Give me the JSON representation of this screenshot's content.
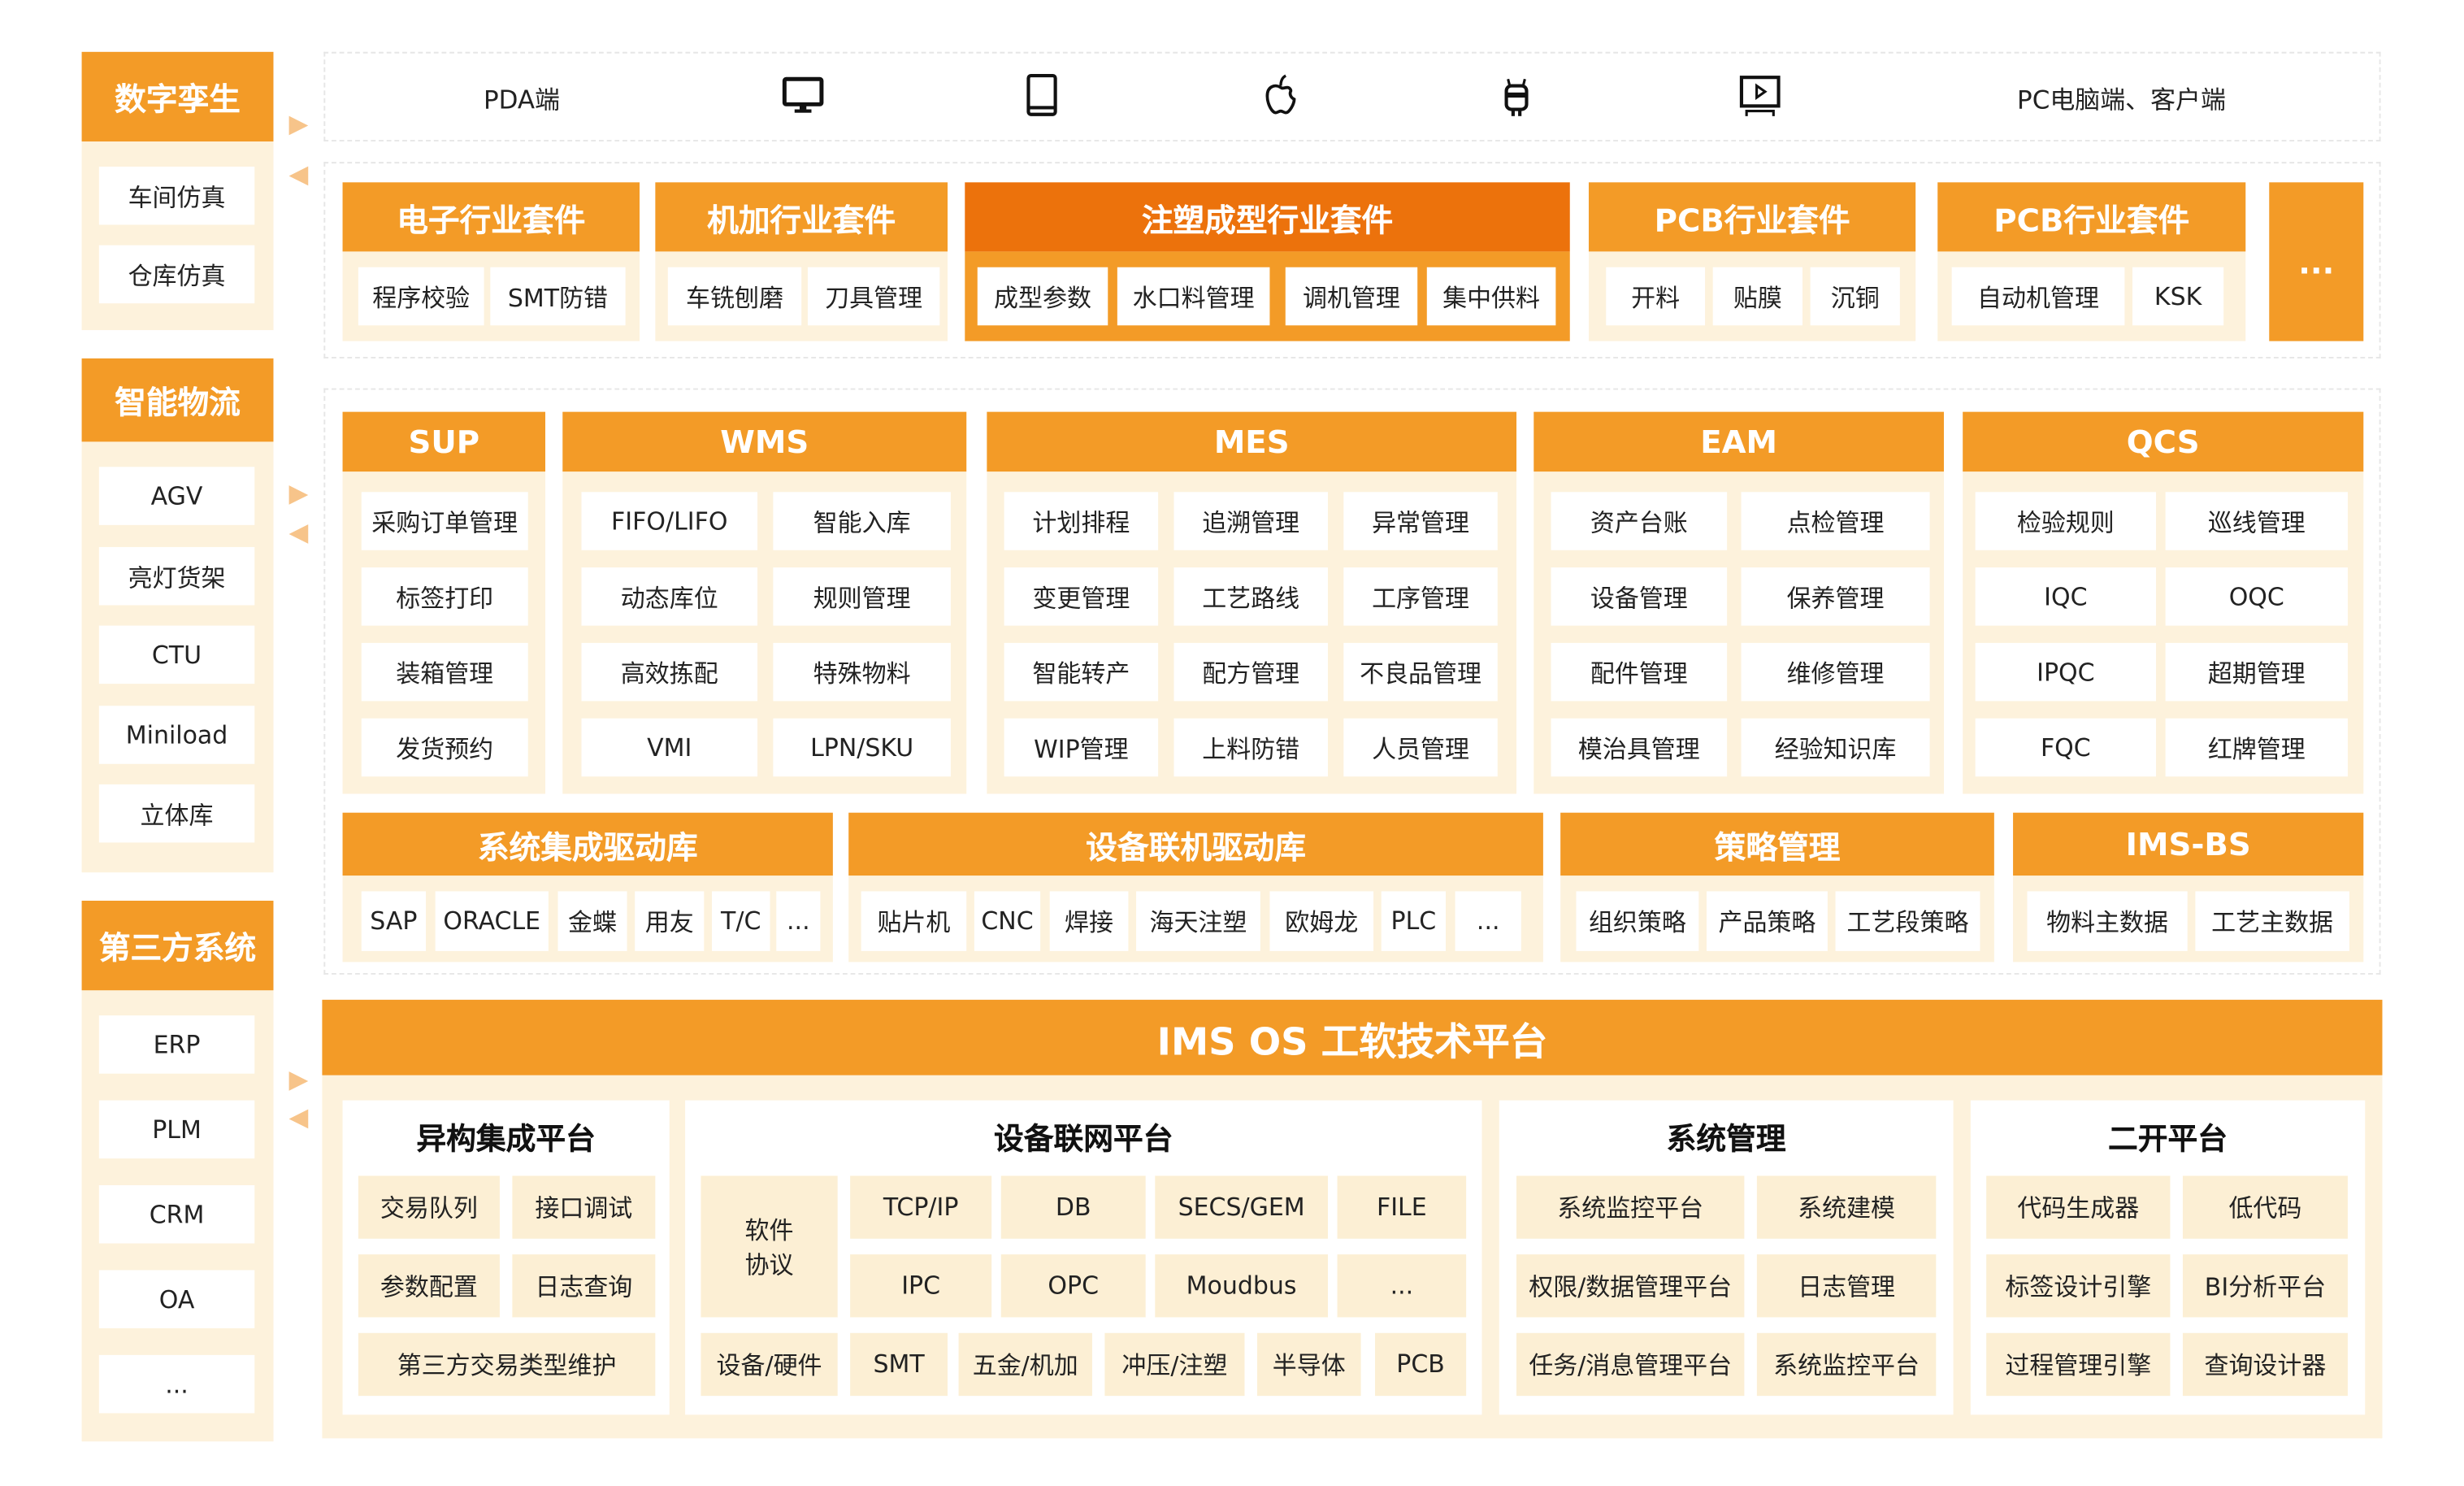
{
  "left": [
    {
      "title": "数字孪生",
      "items": [
        "车间仿真",
        "仓库仿真"
      ]
    },
    {
      "title": "智能物流",
      "items": [
        "AGV",
        "亮灯货架",
        "CTU",
        "Miniload",
        "立体库"
      ]
    },
    {
      "title": "第三方系统",
      "items": [
        "ERP",
        "PLM",
        "CRM",
        "OA",
        "..."
      ]
    }
  ],
  "devices": {
    "pda_label": "PDA端",
    "pc_label": "PC电脑端、客户端",
    "icons": [
      "monitor-icon",
      "tablet-icon",
      "apple-icon",
      "android-icon",
      "tv-icon"
    ]
  },
  "kits": [
    {
      "title": "电子行业套件",
      "items": [
        "程序校验",
        "SMT防错"
      ]
    },
    {
      "title": "机加行业套件",
      "items": [
        "车铣刨磨",
        "刀具管理"
      ]
    },
    {
      "title": "注塑成型行业套件",
      "items": [
        "成型参数",
        "水口料管理",
        "调机管理",
        "集中供料"
      ],
      "highlight": true
    },
    {
      "title": "PCB行业套件",
      "items": [
        "开料",
        "贴膜",
        "沉铜"
      ]
    },
    {
      "title": "PCB行业套件",
      "items": [
        "自动机管理",
        "KSK"
      ]
    }
  ],
  "kits_more": "...",
  "modules": [
    {
      "title": "SUP",
      "items": [
        "采购订单管理",
        "标签打印",
        "装箱管理",
        "发货预约"
      ]
    },
    {
      "title": "WMS",
      "items": [
        "FIFO/LIFO",
        "智能入库",
        "动态库位",
        "规则管理",
        "高效拣配",
        "特殊物料",
        "VMI",
        "LPN/SKU"
      ]
    },
    {
      "title": "MES",
      "items": [
        "计划排程",
        "追溯管理",
        "异常管理",
        "变更管理",
        "工艺路线",
        "工序管理",
        "智能转产",
        "配方管理",
        "不良品管理",
        "WIP管理",
        "上料防错",
        "人员管理"
      ]
    },
    {
      "title": "EAM",
      "items": [
        "资产台账",
        "点检管理",
        "设备管理",
        "保养管理",
        "配件管理",
        "维修管理",
        "模治具管理",
        "经验知识库"
      ]
    },
    {
      "title": "QCS",
      "items": [
        "检验规则",
        "巡线管理",
        "IQC",
        "OQC",
        "IPQC",
        "超期管理",
        "FQC",
        "红牌管理"
      ]
    }
  ],
  "drivers": [
    {
      "title": "系统集成驱动库",
      "items": [
        "SAP",
        "ORACLE",
        "金蝶",
        "用友",
        "T/C",
        "..."
      ]
    },
    {
      "title": "设备联机驱动库",
      "items": [
        "贴片机",
        "CNC",
        "焊接",
        "海天注塑",
        "欧姆龙",
        "PLC",
        "..."
      ]
    },
    {
      "title": "策略管理",
      "items": [
        "组织策略",
        "产品策略",
        "工艺段策略"
      ]
    },
    {
      "title": "IMS-BS",
      "items": [
        "物料主数据",
        "工艺主数据"
      ]
    }
  ],
  "platform": {
    "title": "IMS OS 工软技术平台",
    "panels": [
      {
        "title": "异构集成平台",
        "items": [
          "交易队列",
          "接口调试",
          "参数配置",
          "日志查询",
          "第三方交易类型维护"
        ]
      },
      {
        "title": "设备联网平台",
        "items": [
          "软件\n协议",
          "TCP/IP",
          "DB",
          "SECS/GEM",
          "FILE",
          "IPC",
          "OPC",
          "Moudbus",
          "...",
          "设备/硬件",
          "SMT",
          "五金/机加",
          "冲压/注塑",
          "半导体",
          "PCB"
        ]
      },
      {
        "title": "系统管理",
        "items": [
          "系统监控平台",
          "系统建模",
          "权限/数据管理平台",
          "日志管理",
          "任务/消息管理平台",
          "系统监控平台"
        ]
      },
      {
        "title": "二开平台",
        "items": [
          "代码生成器",
          "低代码",
          "标签设计引擎",
          "BI分析平台",
          "过程管理引擎",
          "查询设计器"
        ]
      }
    ]
  },
  "colors": {
    "orange": "#f39b27",
    "dark_orange": "#ec720c",
    "cream": "#fdf2dc"
  }
}
